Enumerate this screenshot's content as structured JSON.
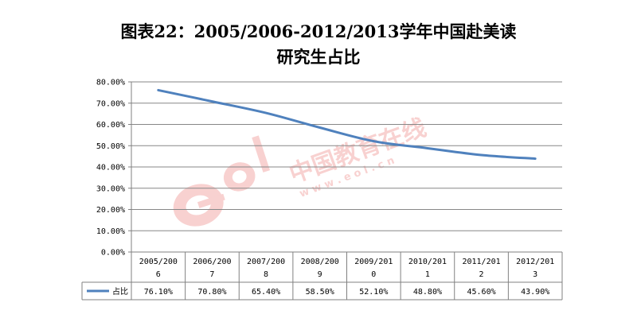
{
  "title": {
    "line1": "图表22：2005/2006-2012/2013学年中国赴美读",
    "line2": "研究生占比"
  },
  "watermark": {
    "logo_text": "eol",
    "brand": "中国教育在线",
    "url": "w w w . e o l . c n"
  },
  "chart_data": {
    "type": "line",
    "title": "图表22：2005/2006-2012/2013学年中国赴美读研究生占比",
    "categories": [
      [
        "2005/200",
        "6"
      ],
      [
        "2006/200",
        "7"
      ],
      [
        "2007/200",
        "8"
      ],
      [
        "2008/200",
        "9"
      ],
      [
        "2009/201",
        "0"
      ],
      [
        "2010/201",
        "1"
      ],
      [
        "2011/201",
        "2"
      ],
      [
        "2012/201",
        "3"
      ]
    ],
    "series": [
      {
        "name": "占比",
        "values": [
          76.1,
          70.8,
          65.4,
          58.5,
          52.1,
          48.8,
          45.6,
          43.9
        ],
        "labels": [
          "76.10%",
          "70.80%",
          "65.40%",
          "58.50%",
          "52.10%",
          "48.80%",
          "45.60%",
          "43.90%"
        ],
        "color": "#4f81bd"
      }
    ],
    "y_ticks": [
      "0.00%",
      "10.00%",
      "20.00%",
      "30.00%",
      "40.00%",
      "50.00%",
      "60.00%",
      "70.00%",
      "80.00%"
    ],
    "ylim": [
      0,
      80
    ],
    "grid": true,
    "legend": "data-table"
  }
}
